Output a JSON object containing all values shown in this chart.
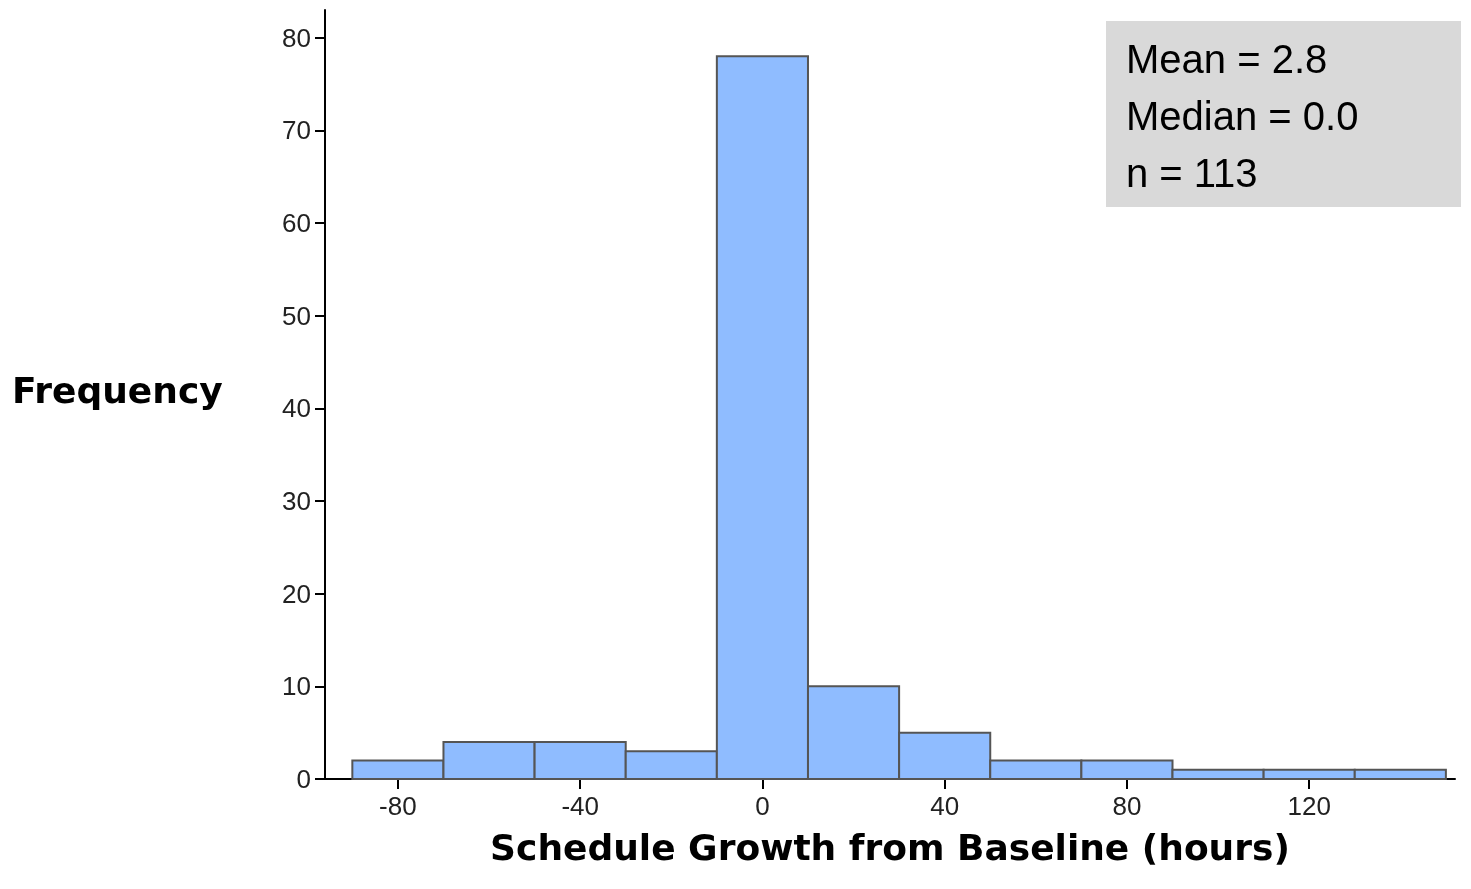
{
  "chart_data": {
    "type": "histogram",
    "xlabel": "Schedule Growth from Baseline (hours)",
    "ylabel": "Frequency",
    "bins": [
      -90,
      -70,
      -50,
      -30,
      -10,
      10,
      30,
      50,
      70,
      90,
      110,
      130,
      150
    ],
    "values": [
      2,
      4,
      4,
      3,
      78,
      10,
      5,
      2,
      2,
      1,
      1,
      1
    ],
    "color": "#8fbcff",
    "xlim": [
      -96,
      152
    ],
    "xticks": [
      -80,
      -40,
      0,
      40,
      80,
      120
    ],
    "ylim": [
      0,
      83
    ],
    "yticks": [
      0,
      10,
      20,
      30,
      40,
      50,
      60,
      70,
      80
    ],
    "grid": false,
    "annotations": [
      "Mean = 2.8",
      "Median = 0.0",
      "n = 113"
    ]
  }
}
